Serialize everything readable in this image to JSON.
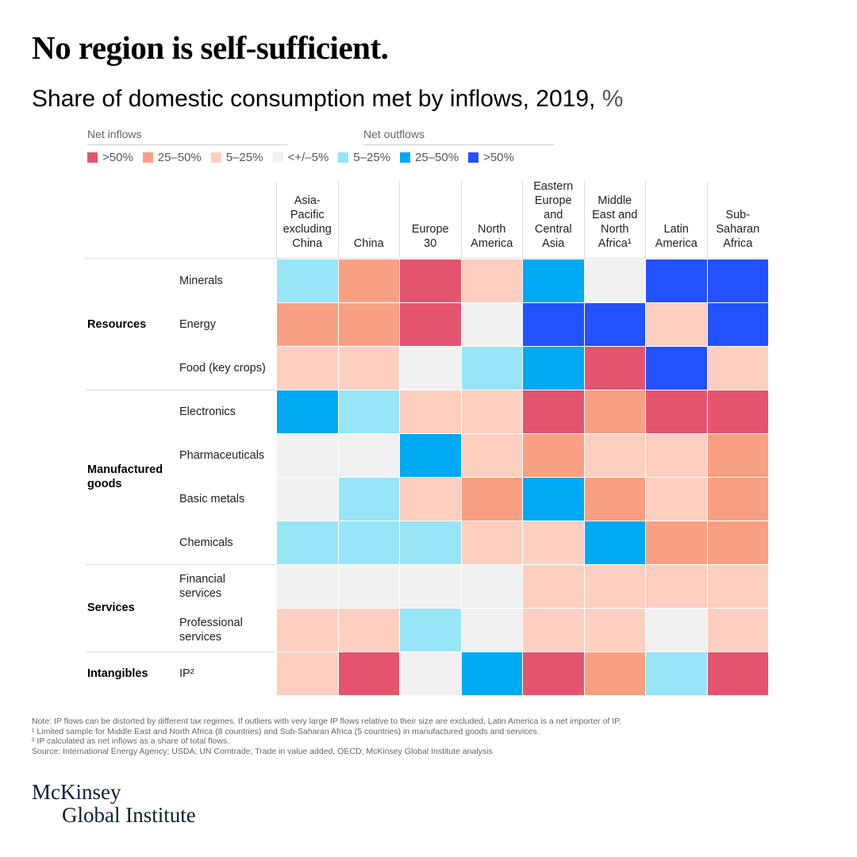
{
  "title": "No region is self-sufficient.",
  "subtitle": "Share of domestic consumption met by inflows, 2019,",
  "unit": "%",
  "legend": {
    "inflows_label": "Net inflows",
    "outflows_label": "Net outflows",
    "items": [
      {
        "level": 3,
        "label": ">50%",
        "color": "#e5546e"
      },
      {
        "level": 2,
        "label": "25–50%",
        "color": "#f9a083"
      },
      {
        "level": 1,
        "label": "5–25%",
        "color": "#fdcfc0"
      },
      {
        "level": 0,
        "label": "<+/–5%",
        "color": "#f1f1f1"
      },
      {
        "level": -1,
        "label": "5–25%",
        "color": "#97e5f7"
      },
      {
        "level": -2,
        "label": "25–50%",
        "color": "#00a9f4"
      },
      {
        "level": -3,
        "label": ">50%",
        "color": "#2251ff"
      }
    ]
  },
  "chart_data": {
    "type": "heatmap",
    "title": "Share of domestic consumption met by inflows, 2019, %",
    "value_encoding": "levels: 3 = net inflows >50%, 2 = net inflows 25–50%, 1 = net inflows 5–25%, 0 = <+/–5%, -1 = net outflows 5–25%, -2 = net outflows 25–50%, -3 = net outflows >50%",
    "columns": [
      "Asia-\nPacific\nexcluding\nChina",
      "China",
      "Europe\n30",
      "North\nAmerica",
      "Eastern\nEurope\nand\nCentral\nAsia",
      "Middle\nEast and\nNorth\nAfrica¹",
      "Latin\nAmerica",
      "Sub-\nSaharan\nAfrica"
    ],
    "groups": [
      {
        "label": "Resources",
        "rows": [
          {
            "label": "Minerals",
            "values": [
              -1,
              2,
              3,
              1,
              -2,
              0,
              -3,
              -3
            ]
          },
          {
            "label": "Energy",
            "values": [
              2,
              2,
              3,
              0,
              -3,
              -3,
              1,
              -3
            ]
          },
          {
            "label": "Food (key crops)",
            "values": [
              1,
              1,
              0,
              -1,
              -2,
              3,
              -3,
              1
            ]
          }
        ]
      },
      {
        "label": "Manufactured\ngoods",
        "rows": [
          {
            "label": "Electronics",
            "values": [
              -2,
              -1,
              1,
              1,
              3,
              2,
              3,
              3
            ]
          },
          {
            "label": "Pharmaceuticals",
            "values": [
              0,
              0,
              -2,
              1,
              2,
              1,
              1,
              2
            ]
          },
          {
            "label": "Basic metals",
            "values": [
              0,
              -1,
              1,
              2,
              -2,
              2,
              1,
              2
            ]
          },
          {
            "label": "Chemicals",
            "values": [
              -1,
              -1,
              -1,
              1,
              1,
              -2,
              2,
              2
            ]
          }
        ]
      },
      {
        "label": "Services",
        "rows": [
          {
            "label": "Financial\nservices",
            "values": [
              0,
              0,
              0,
              0,
              1,
              1,
              1,
              1
            ]
          },
          {
            "label": "Professional\nservices",
            "values": [
              1,
              1,
              -1,
              0,
              1,
              1,
              0,
              1
            ]
          }
        ]
      },
      {
        "label": "Intangibles",
        "rows": [
          {
            "label": "IP²",
            "values": [
              1,
              3,
              0,
              -2,
              3,
              2,
              -1,
              3
            ]
          }
        ]
      }
    ]
  },
  "notes": [
    "Note: IP flows can be distorted by different tax regimes. If outliers with very large IP flows relative to their size are excluded, Latin America is a net importer of IP.",
    "¹ Limited sample for Middle East and North Africa (8 countries) and Sub-Saharan Africa (5 countries) in manufactured goods and services.",
    "² IP calculated as net inflows as a share of total flows.",
    "Source: International Energy Agency; USDA; UN Comtrade; Trade in value added, OECD; McKinsey Global Institute analysis"
  ],
  "logo": {
    "line1": "McKinsey",
    "line2": "Global Institute"
  }
}
